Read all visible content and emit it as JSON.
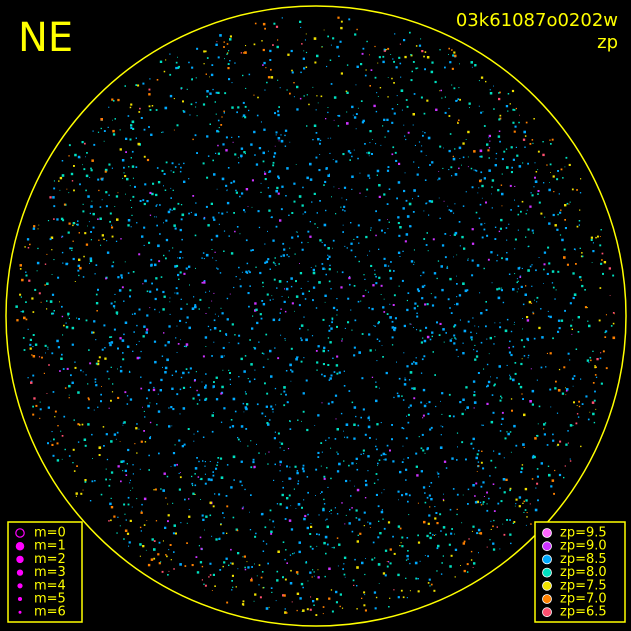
{
  "header": {
    "direction": "NE",
    "frame_id": "03k61087o0202w",
    "quantity": "zp"
  },
  "magnitude_legend": {
    "items": [
      "m=0",
      "m=1",
      "m=2",
      "m=3",
      "m=4",
      "m=5",
      "m=6"
    ],
    "color": "#ff00ff"
  },
  "zp_legend": {
    "items": [
      {
        "label": "zp=9.5",
        "color": "#ff66ff"
      },
      {
        "label": "zp=9.0",
        "color": "#cc33ff"
      },
      {
        "label": "zp=8.5",
        "color": "#00aaff"
      },
      {
        "label": "zp=8.0",
        "color": "#00e0c0"
      },
      {
        "label": "zp=7.5",
        "color": "#f0e000"
      },
      {
        "label": "zp=7.0",
        "color": "#ff8000"
      },
      {
        "label": "zp=6.5",
        "color": "#ff5070"
      }
    ]
  }
}
